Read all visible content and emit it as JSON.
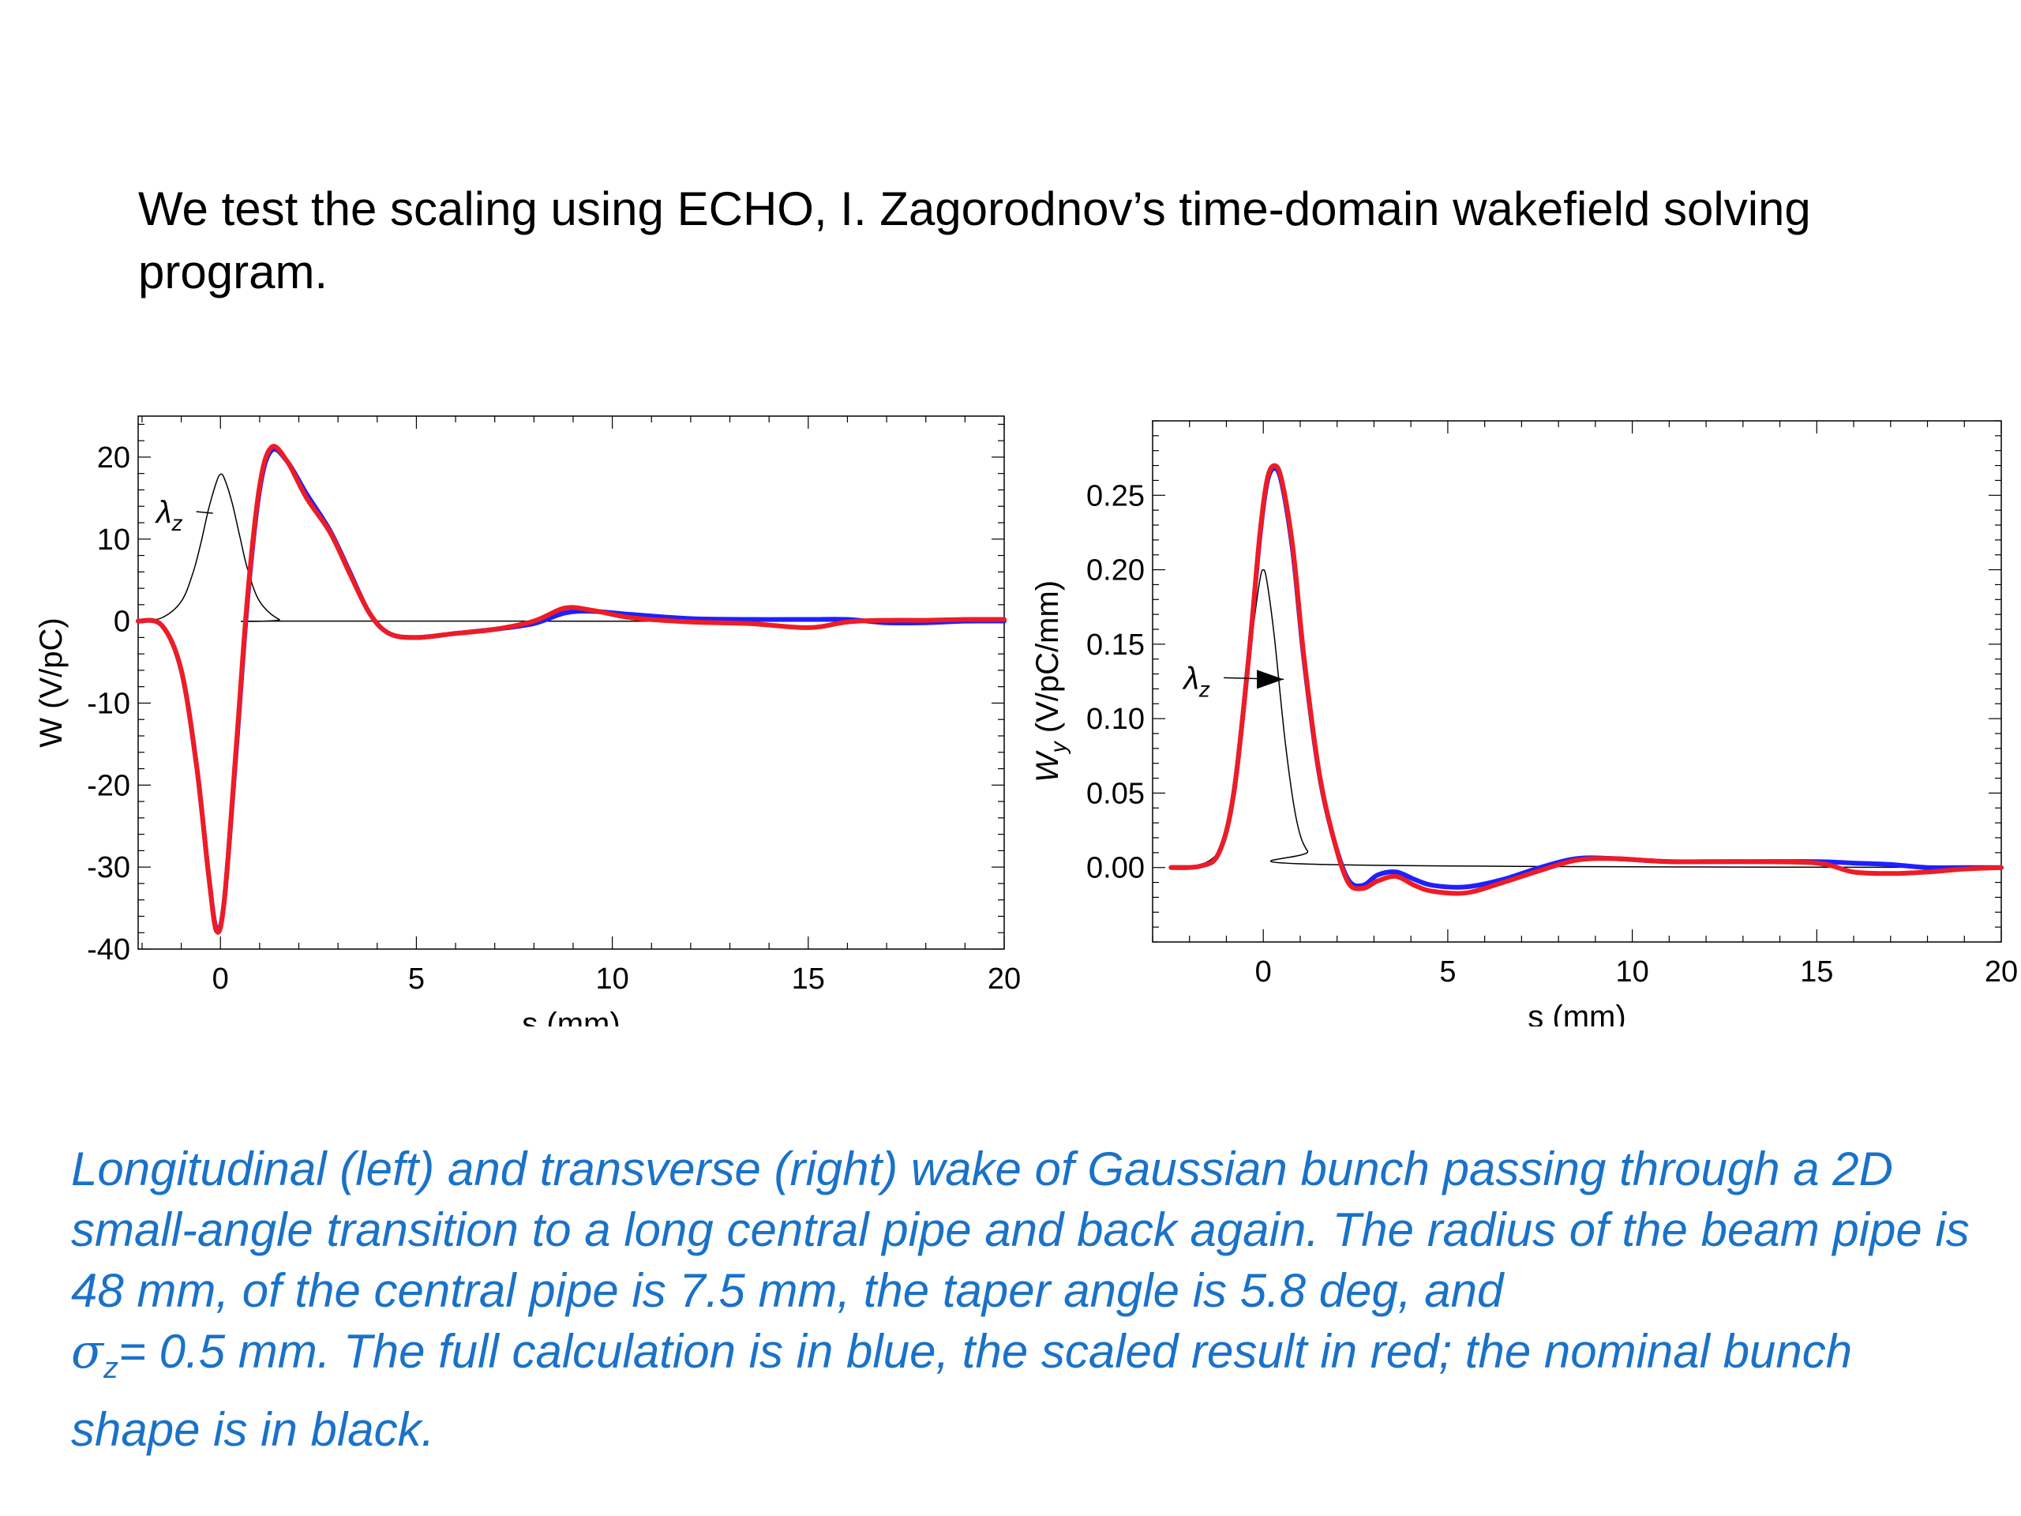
{
  "intro": {
    "line1": "We test the scaling using ECHO, I. Zagorodnov’s time-domain wakefield solving",
    "line2": "program."
  },
  "caption": {
    "part1": "Longitudinal (left) and transverse (right) wake of Gaussian bunch passing through a 2D small-angle transition to a long central pipe and back again. The radius of the beam pipe is 48 mm, of the central pipe is 7.5 mm, the taper angle is 5.8 deg, and",
    "sigma": "σ",
    "sigma_sub": "z",
    "part2": "= 0.5 mm. The full calculation is in blue, the scaled result in red; the nominal bunch shape is in black."
  },
  "colors": {
    "full": "#1f1fff",
    "scaled": "#ee1c24",
    "bunch": "#000000",
    "caption": "#1a72c8"
  },
  "chart_data": [
    {
      "type": "line",
      "xlabel": "s (mm)",
      "ylabel": "W (V/pC)",
      "xlim": [
        -2.1,
        20
      ],
      "ylim": [
        -40,
        25
      ],
      "xticks": [
        0,
        5,
        10,
        15,
        20
      ],
      "xtick_labels": [
        "0",
        "5",
        "10",
        "15",
        "20"
      ],
      "yticks": [
        20,
        10,
        0,
        -10,
        -20,
        -30,
        -40
      ],
      "ytick_labels": [
        "20",
        "10",
        "0",
        "-10",
        "-20",
        "-30",
        "-40"
      ],
      "annotations": [
        {
          "text": "λz",
          "x": -1.3,
          "y": 12
        }
      ],
      "series": [
        {
          "color": "#000000",
          "x": [
            -2.1,
            -1.5,
            -1.0,
            -0.7,
            -0.5,
            -0.3,
            -0.1,
            0.0,
            0.1,
            0.3,
            0.5,
            0.7,
            1.0,
            1.5,
            2.0,
            20
          ],
          "y": [
            0,
            0.4,
            2.4,
            5.9,
            9.5,
            13.7,
            17.0,
            17.9,
            17.4,
            14.4,
            10.2,
            6.2,
            2.4,
            0.2,
            0,
            0
          ]
        },
        {
          "color": "#1f1fff",
          "x": [
            -2.1,
            -1.5,
            -1.0,
            -0.6,
            -0.3,
            -0.1,
            0.1,
            0.4,
            0.7,
            1.0,
            1.3,
            1.7,
            2.2,
            2.8,
            3.3,
            3.8,
            4.3,
            5.0,
            6.0,
            7.0,
            8.0,
            8.8,
            9.5,
            10.5,
            12.0,
            13.5,
            15.0,
            16.0,
            17.0,
            18.0,
            19.0,
            20.0
          ],
          "y": [
            0,
            -0.5,
            -6,
            -18,
            -31,
            -37.5,
            -34,
            -16,
            3,
            16,
            20.8,
            19.5,
            15.5,
            11,
            6,
            1,
            -1.5,
            -2,
            -1.5,
            -1,
            -0.3,
            1,
            1.2,
            0.8,
            0.3,
            0.2,
            0.2,
            0.2,
            -0.2,
            -0.2,
            0,
            0
          ]
        },
        {
          "color": "#ee1c24",
          "x": [
            -2.1,
            -1.5,
            -1.0,
            -0.6,
            -0.3,
            -0.1,
            0.1,
            0.4,
            0.7,
            1.0,
            1.3,
            1.7,
            2.2,
            2.8,
            3.3,
            3.8,
            4.3,
            5.0,
            6.0,
            7.0,
            8.0,
            8.8,
            9.5,
            10.5,
            12.0,
            13.5,
            15.0,
            16.0,
            17.0,
            18.0,
            19.0,
            20.0
          ],
          "y": [
            0,
            -0.5,
            -6,
            -18,
            -31,
            -37.8,
            -34,
            -15.5,
            3.5,
            16.5,
            21.2,
            19.5,
            15,
            10.8,
            5.8,
            1,
            -1.5,
            -2,
            -1.5,
            -1,
            0,
            1.6,
            1.3,
            0.4,
            -0.1,
            -0.3,
            -0.8,
            -0.1,
            0.1,
            0.1,
            0.2,
            0.2
          ]
        }
      ]
    },
    {
      "type": "line",
      "xlabel": "s (mm)",
      "ylabel": "Wy (V/pC/mm)",
      "ylabel_main": "W",
      "ylabel_sub": "y",
      "ylabel_rest": " (V/pC/mm)",
      "xlim": [
        -3,
        20
      ],
      "ylim": [
        -0.05,
        0.3
      ],
      "xticks": [
        0,
        5,
        10,
        15,
        20
      ],
      "xtick_labels": [
        "0",
        "5",
        "10",
        "15",
        "20"
      ],
      "yticks": [
        0.25,
        0.2,
        0.15,
        0.1,
        0.05,
        0.0
      ],
      "ytick_labels": [
        "0.25",
        "0.20",
        "0.15",
        "0.10",
        "0.05",
        "0.00"
      ],
      "annotations": [
        {
          "text": "λz",
          "x": -1.8,
          "y": 0.12
        }
      ],
      "series": [
        {
          "color": "#000000",
          "x": [
            -2.5,
            -1.7,
            -1.2,
            -0.9,
            -0.6,
            -0.3,
            -0.1,
            0.0,
            0.1,
            0.3,
            0.6,
            0.9,
            1.2,
            1.7,
            20
          ],
          "y": [
            0,
            0.002,
            0.011,
            0.032,
            0.083,
            0.155,
            0.192,
            0.2,
            0.192,
            0.155,
            0.083,
            0.032,
            0.011,
            0.002,
            0
          ]
        },
        {
          "color": "#1f1fff",
          "x": [
            -2.5,
            -1.7,
            -1.2,
            -0.8,
            -0.4,
            -0.1,
            0.1,
            0.3,
            0.5,
            0.8,
            1.1,
            1.5,
            1.9,
            2.3,
            2.7,
            3.1,
            3.6,
            4.1,
            4.6,
            5.5,
            6.5,
            7.5,
            8.5,
            9.5,
            11.0,
            13.0,
            15.0,
            16.0,
            17.0,
            18.0,
            19.0,
            20.0
          ],
          "y": [
            0,
            0.001,
            0.01,
            0.05,
            0.14,
            0.22,
            0.258,
            0.268,
            0.258,
            0.212,
            0.14,
            0.065,
            0.02,
            -0.008,
            -0.012,
            -0.005,
            -0.003,
            -0.008,
            -0.012,
            -0.013,
            -0.008,
            0,
            0.006,
            0.006,
            0.004,
            0.004,
            0.004,
            0.003,
            0.002,
            0,
            0,
            0
          ]
        },
        {
          "color": "#ee1c24",
          "x": [
            -2.5,
            -1.7,
            -1.2,
            -0.8,
            -0.4,
            -0.1,
            0.1,
            0.3,
            0.5,
            0.8,
            1.1,
            1.5,
            1.9,
            2.3,
            2.7,
            3.1,
            3.6,
            4.1,
            4.6,
            5.5,
            6.5,
            7.5,
            8.5,
            9.5,
            11.0,
            13.0,
            15.0,
            16.0,
            17.0,
            18.0,
            19.0,
            20.0
          ],
          "y": [
            0,
            0.001,
            0.01,
            0.05,
            0.14,
            0.222,
            0.26,
            0.27,
            0.26,
            0.215,
            0.142,
            0.066,
            0.02,
            -0.01,
            -0.014,
            -0.009,
            -0.006,
            -0.012,
            -0.016,
            -0.017,
            -0.01,
            -0.002,
            0.005,
            0.006,
            0.004,
            0.004,
            0.003,
            -0.003,
            -0.004,
            -0.003,
            -0.001,
            0
          ]
        }
      ]
    }
  ]
}
